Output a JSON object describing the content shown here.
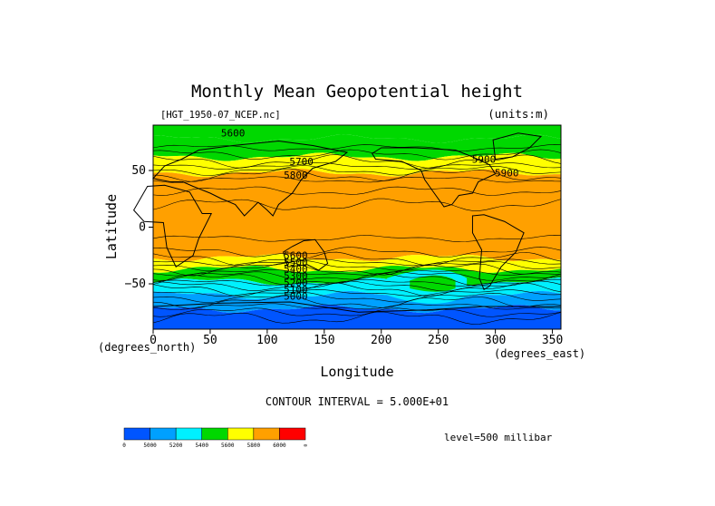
{
  "chart_data": {
    "type": "heatmap",
    "title": "Monthly Mean Geopotential height",
    "file_label": "[HGT_1950-07_NCEP.nc]",
    "units_label": "(units:m)",
    "xlabel": "Longitude",
    "ylabel": "Latitude",
    "x_unit_label": "(degrees_east)",
    "y_unit_label": "(degrees_north)",
    "xlim": [
      0,
      357.5
    ],
    "ylim": [
      -90,
      90
    ],
    "x_ticks": [
      0,
      50,
      100,
      150,
      200,
      250,
      300,
      350
    ],
    "y_ticks": [
      50,
      0,
      -50
    ],
    "y_tick_labels": [
      "50",
      "0",
      "−50"
    ],
    "contour_interval_text": "CONTOUR INTERVAL = 5.000E+01",
    "level_text": "level=500 millibar",
    "contour_labels": [
      "5600",
      "5700",
      "5900",
      "5900",
      "5800",
      "5600",
      "5500",
      "5400",
      "5300",
      "5200",
      "5100",
      "5000"
    ],
    "colorbar": {
      "colors": [
        "#0055ff",
        "#00a0ff",
        "#00f0ff",
        "#00d800",
        "#ffff00",
        "#ffa000",
        "#ff0000"
      ],
      "tick_labels": [
        "0",
        "5000",
        "5200",
        "5400",
        "5600",
        "5800",
        "6000",
        "∞"
      ]
    },
    "bands": [
      {
        "lat_top": 90,
        "lat_bottom": 78,
        "color": "#00d800"
      },
      {
        "lat_top": 78,
        "lat_bottom": 62,
        "color": "#00d800"
      },
      {
        "lat_top": 62,
        "lat_bottom": 48,
        "color": "#ffff00"
      },
      {
        "lat_top": 48,
        "lat_bottom": -27,
        "color": "#ffa000"
      },
      {
        "lat_top": -27,
        "lat_bottom": -37,
        "color": "#ffff00"
      },
      {
        "lat_top": -37,
        "lat_bottom": -48,
        "color": "#00d800"
      },
      {
        "lat_top": -48,
        "lat_bottom": -60,
        "color": "#00f0ff"
      },
      {
        "lat_top": -60,
        "lat_bottom": -72,
        "color": "#00a0ff"
      },
      {
        "lat_top": -72,
        "lat_bottom": -90,
        "color": "#0055ff"
      }
    ]
  }
}
